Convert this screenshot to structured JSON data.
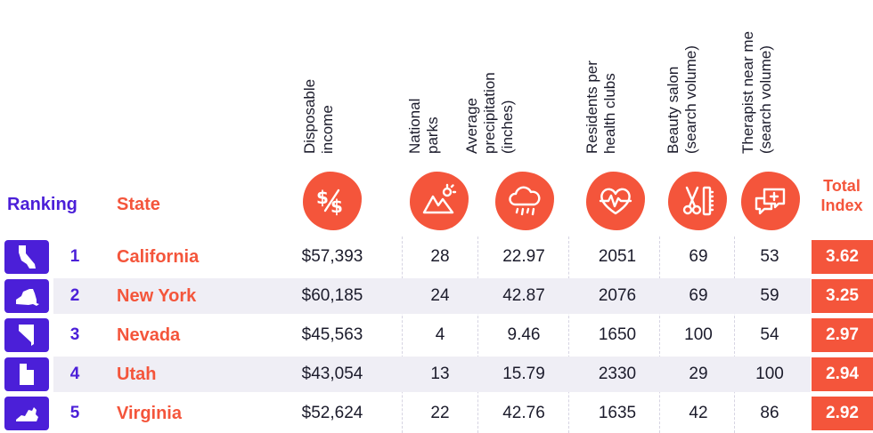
{
  "headers": {
    "ranking": "Ranking",
    "state": "State",
    "total": "Total\nIndex",
    "columns": [
      {
        "label": "Disposable\nincome",
        "icon": "money-icon"
      },
      {
        "label": "National\nparks",
        "icon": "mountain-sun-icon"
      },
      {
        "label": "Average\nprecipitation\n(inches)",
        "icon": "rain-cloud-icon"
      },
      {
        "label": "Residents per\nhealth clubs",
        "icon": "heartbeat-icon"
      },
      {
        "label": "Beauty salon\n(search volume)",
        "icon": "scissors-comb-icon"
      },
      {
        "label": "Therapist near me\n(search volume)",
        "icon": "speech-bubble-plus-icon"
      }
    ]
  },
  "rows": [
    {
      "rank": "1",
      "state": "California",
      "income": "$57,393",
      "parks": "28",
      "precip": "22.97",
      "clubs": "2051",
      "salon": "69",
      "therapist": "53",
      "total": "3.62"
    },
    {
      "rank": "2",
      "state": "New York",
      "income": "$60,185",
      "parks": "24",
      "precip": "42.87",
      "clubs": "2076",
      "salon": "69",
      "therapist": "59",
      "total": "3.25"
    },
    {
      "rank": "3",
      "state": "Nevada",
      "income": "$45,563",
      "parks": "4",
      "precip": "9.46",
      "clubs": "1650",
      "salon": "100",
      "therapist": "54",
      "total": "2.97"
    },
    {
      "rank": "4",
      "state": "Utah",
      "income": "$43,054",
      "parks": "13",
      "precip": "15.79",
      "clubs": "2330",
      "salon": "29",
      "therapist": "100",
      "total": "2.94"
    },
    {
      "rank": "5",
      "state": "Virginia",
      "income": "$52,624",
      "parks": "22",
      "precip": "42.76",
      "clubs": "1635",
      "salon": "42",
      "therapist": "86",
      "total": "2.92"
    }
  ],
  "colors": {
    "purple": "#4b1fd8",
    "coral": "#f4553b",
    "stripe": "#efeef5"
  }
}
